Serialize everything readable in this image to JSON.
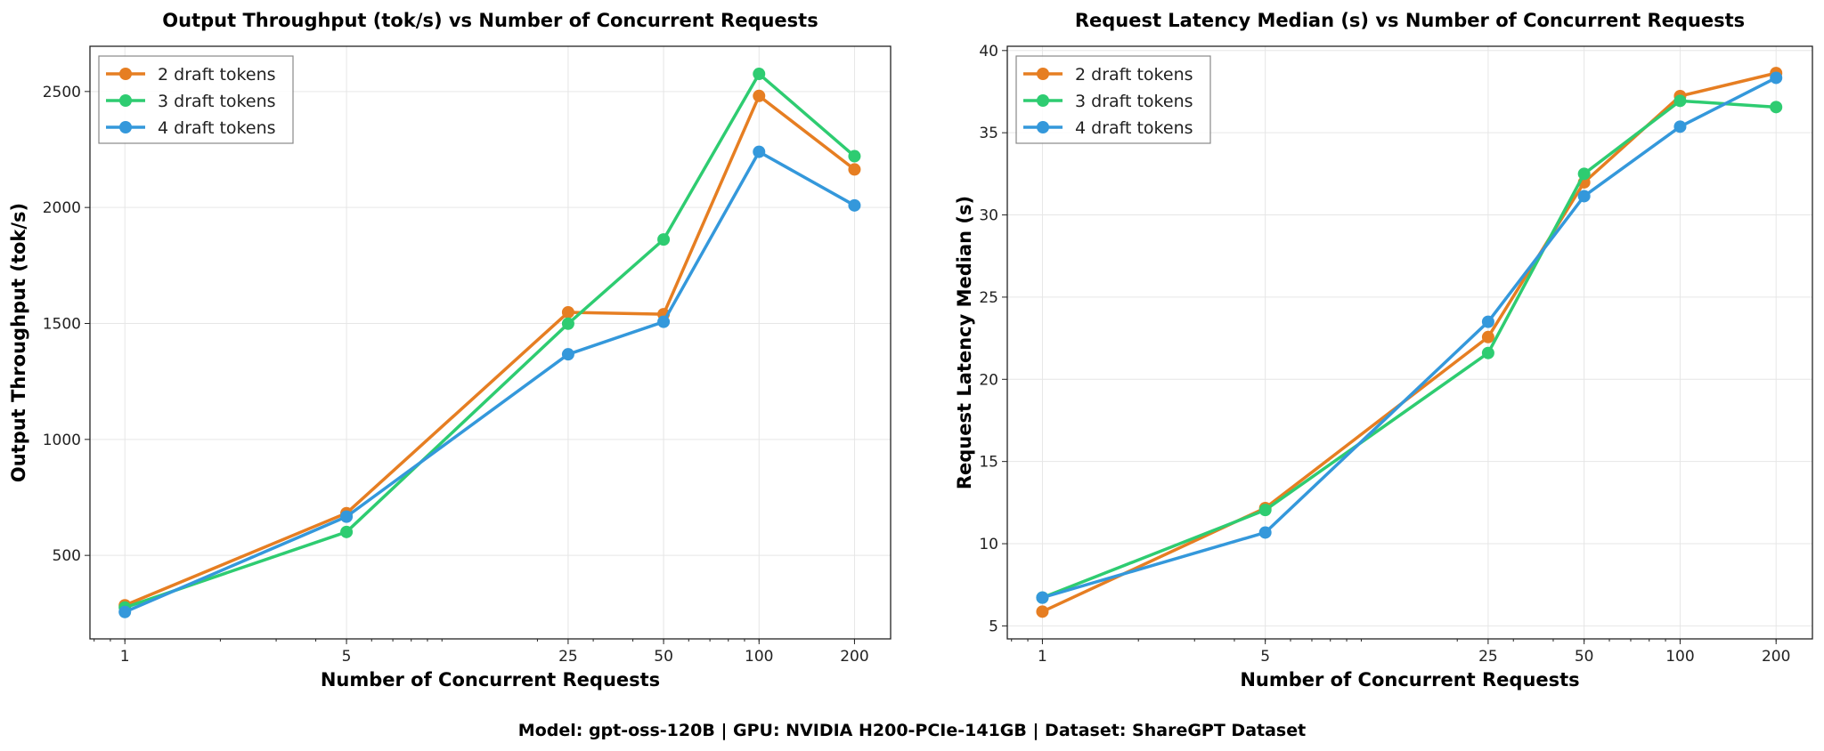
{
  "footer": "Model: gpt-oss-120B | GPU: NVIDIA H200-PCIe-141GB | Dataset: ShareGPT Dataset",
  "chart_data": [
    {
      "type": "line",
      "title": "Output Throughput (tok/s) vs Number of Concurrent Requests",
      "xlabel": "Number of Concurrent Requests",
      "ylabel": "Output Throughput (tok/s)",
      "xscale": "log",
      "x": [
        1,
        5,
        25,
        50,
        100,
        200
      ],
      "xtick_labels": [
        "1",
        "5",
        "25",
        "50",
        "100",
        "200"
      ],
      "xlim": [
        0.776,
        260
      ],
      "ylim": [
        140,
        2695
      ],
      "yticks": [
        500,
        1000,
        1500,
        2000,
        2500
      ],
      "ytick_labels": [
        "500",
        "1000",
        "1500",
        "2000",
        "2500"
      ],
      "grid": true,
      "legend": "top-left",
      "series": [
        {
          "name": "2 draft tokens",
          "color": "#e67e22",
          "values": [
            285,
            682,
            1548,
            1540,
            2481,
            2164
          ]
        },
        {
          "name": "3 draft tokens",
          "color": "#2ecc71",
          "values": [
            275,
            601,
            1499,
            1862,
            2576,
            2221
          ]
        },
        {
          "name": "4 draft tokens",
          "color": "#3498db",
          "values": [
            256,
            667,
            1367,
            1507,
            2240,
            2009
          ]
        }
      ]
    },
    {
      "type": "line",
      "title": "Request Latency Median (s) vs Number of Concurrent Requests",
      "xlabel": "Number of Concurrent Requests",
      "ylabel": "Request Latency Median (s)",
      "xscale": "log",
      "x": [
        1,
        5,
        25,
        50,
        100,
        200
      ],
      "xtick_labels": [
        "1",
        "5",
        "25",
        "50",
        "100",
        "200"
      ],
      "xlim": [
        0.776,
        260
      ],
      "ylim": [
        4.21,
        40.26
      ],
      "yticks": [
        5,
        10,
        15,
        20,
        25,
        30,
        35,
        40
      ],
      "ytick_labels": [
        "5",
        "10",
        "15",
        "20",
        "25",
        "30",
        "35",
        "40"
      ],
      "grid": true,
      "legend": "top-left",
      "series": [
        {
          "name": "2 draft tokens",
          "color": "#e67e22",
          "values": [
            5.87,
            12.17,
            22.57,
            31.98,
            37.23,
            38.63
          ]
        },
        {
          "name": "3 draft tokens",
          "color": "#2ecc71",
          "values": [
            6.72,
            12.05,
            21.6,
            32.5,
            36.94,
            36.56
          ]
        },
        {
          "name": "4 draft tokens",
          "color": "#3498db",
          "values": [
            6.72,
            10.68,
            23.5,
            31.14,
            35.37,
            38.34
          ]
        }
      ]
    }
  ]
}
